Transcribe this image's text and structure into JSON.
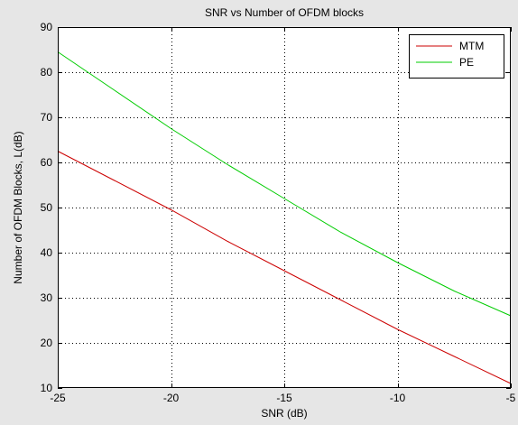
{
  "chart_data": {
    "type": "line",
    "title": "SNR vs Number of OFDM blocks",
    "xlabel": "SNR (dB)",
    "ylabel": "Number of OFDM Blocks, L(dB)",
    "xlim": [
      -25,
      -5
    ],
    "ylim": [
      10,
      90
    ],
    "xticks": [
      -25,
      -20,
      -15,
      -10,
      -5
    ],
    "yticks": [
      10,
      20,
      30,
      40,
      50,
      60,
      70,
      80,
      90
    ],
    "xtick_labels": [
      "-25",
      "-20",
      "-15",
      "-10",
      "-5"
    ],
    "ytick_labels": [
      "10",
      "20",
      "30",
      "40",
      "50",
      "60",
      "70",
      "80",
      "90"
    ],
    "grid": true,
    "legend_position": "top-right",
    "series": [
      {
        "name": "MTM",
        "color": "#cc0000",
        "x": [
          -25,
          -22.5,
          -20,
          -17.5,
          -15,
          -12.5,
          -10,
          -7.5,
          -5
        ],
        "y": [
          62.5,
          56,
          49.5,
          42.5,
          36,
          29.5,
          23,
          17,
          11
        ]
      },
      {
        "name": "PE",
        "color": "#00cc00",
        "x": [
          -25,
          -22.5,
          -20,
          -17.5,
          -15,
          -12.5,
          -10,
          -7.5,
          -5
        ],
        "y": [
          84.5,
          76,
          67.5,
          59.5,
          52,
          44.5,
          37.8,
          31.5,
          26
        ]
      }
    ]
  }
}
